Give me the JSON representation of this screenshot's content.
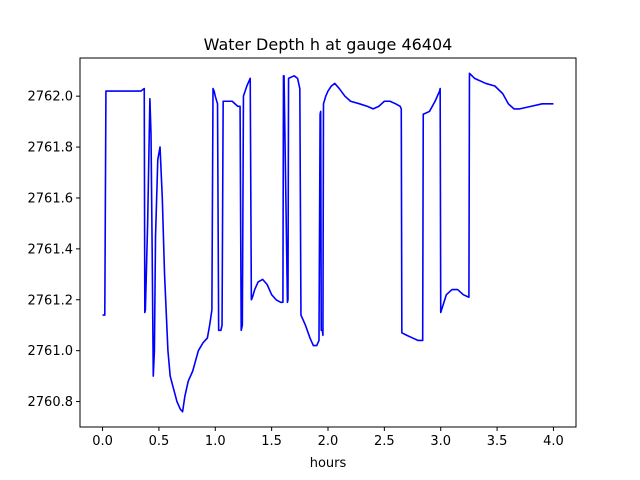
{
  "chart_data": {
    "type": "line",
    "title": "Water Depth h at gauge 46404",
    "xlabel": "hours",
    "ylabel": "",
    "xlim": [
      -0.2,
      4.2
    ],
    "ylim": [
      2760.7,
      2762.15
    ],
    "x_ticks": [
      0.0,
      0.5,
      1.0,
      1.5,
      2.0,
      2.5,
      3.0,
      3.5,
      4.0
    ],
    "x_tick_labels": [
      "0.0",
      "0.5",
      "1.0",
      "1.5",
      "2.0",
      "2.5",
      "3.0",
      "3.5",
      "4.0"
    ],
    "y_ticks": [
      2760.8,
      2761.0,
      2761.2,
      2761.4,
      2761.6,
      2761.8,
      2762.0
    ],
    "y_tick_labels": [
      "2760.8",
      "2761.0",
      "2761.2",
      "2761.4",
      "2761.6",
      "2761.8",
      "2762.0"
    ],
    "grid": false,
    "series": [
      {
        "color": "#0000ff",
        "x": [
          0.0,
          0.02,
          0.03,
          0.1,
          0.2,
          0.3,
          0.34,
          0.37,
          0.375,
          0.38,
          0.4,
          0.42,
          0.43,
          0.44,
          0.45,
          0.46,
          0.47,
          0.49,
          0.51,
          0.53,
          0.55,
          0.58,
          0.6,
          0.63,
          0.66,
          0.69,
          0.71,
          0.73,
          0.76,
          0.8,
          0.85,
          0.89,
          0.93,
          0.95,
          0.97,
          0.98,
          0.99,
          1.0,
          1.02,
          1.03,
          1.05,
          1.06,
          1.07,
          1.1,
          1.15,
          1.2,
          1.22,
          1.23,
          1.24,
          1.25,
          1.28,
          1.31,
          1.32,
          1.33,
          1.35,
          1.38,
          1.42,
          1.46,
          1.5,
          1.54,
          1.58,
          1.6,
          1.605,
          1.61,
          1.64,
          1.645,
          1.65,
          1.7,
          1.73,
          1.75,
          1.76,
          1.8,
          1.84,
          1.87,
          1.9,
          1.92,
          1.93,
          1.935,
          1.94,
          1.95,
          1.955,
          1.96,
          1.98,
          2.0,
          2.03,
          2.06,
          2.1,
          2.15,
          2.2,
          2.28,
          2.35,
          2.4,
          2.45,
          2.5,
          2.55,
          2.6,
          2.64,
          2.65,
          2.655,
          2.7,
          2.75,
          2.8,
          2.84,
          2.845,
          2.85,
          2.9,
          2.95,
          2.99,
          2.995,
          3.0,
          3.05,
          3.1,
          3.15,
          3.2,
          3.25,
          3.255,
          3.3,
          3.4,
          3.48,
          3.55,
          3.6,
          3.65,
          3.7,
          3.8,
          3.9,
          4.0
        ],
        "values": [
          2761.14,
          2761.14,
          2762.02,
          2762.02,
          2762.02,
          2762.02,
          2762.02,
          2762.03,
          2761.15,
          2761.16,
          2761.5,
          2761.99,
          2761.85,
          2761.4,
          2760.9,
          2761.0,
          2761.45,
          2761.75,
          2761.8,
          2761.6,
          2761.3,
          2761.0,
          2760.9,
          2760.85,
          2760.8,
          2760.77,
          2760.76,
          2760.82,
          2760.88,
          2760.92,
          2761.0,
          2761.03,
          2761.05,
          2761.1,
          2761.16,
          2762.03,
          2762.02,
          2762.0,
          2761.97,
          2761.08,
          2761.08,
          2761.1,
          2761.98,
          2761.98,
          2761.98,
          2761.96,
          2761.96,
          2761.08,
          2761.1,
          2762.0,
          2762.04,
          2762.07,
          2761.2,
          2761.21,
          2761.24,
          2761.27,
          2761.28,
          2761.26,
          2761.22,
          2761.2,
          2761.19,
          2761.19,
          2762.08,
          2762.08,
          2761.19,
          2761.2,
          2762.07,
          2762.08,
          2762.07,
          2762.03,
          2761.14,
          2761.1,
          2761.05,
          2761.02,
          2761.02,
          2761.04,
          2761.93,
          2761.94,
          2761.08,
          2761.08,
          2761.06,
          2761.97,
          2762.0,
          2762.02,
          2762.04,
          2762.05,
          2762.03,
          2762.0,
          2761.98,
          2761.97,
          2761.96,
          2761.95,
          2761.96,
          2761.98,
          2761.98,
          2761.97,
          2761.96,
          2761.95,
          2761.07,
          2761.06,
          2761.05,
          2761.04,
          2761.04,
          2761.93,
          2761.93,
          2761.94,
          2761.98,
          2762.02,
          2762.03,
          2761.15,
          2761.22,
          2761.24,
          2761.24,
          2761.22,
          2761.21,
          2762.09,
          2762.07,
          2762.05,
          2762.04,
          2762.01,
          2761.97,
          2761.95,
          2761.95,
          2761.96,
          2761.97,
          2761.97
        ]
      }
    ]
  }
}
